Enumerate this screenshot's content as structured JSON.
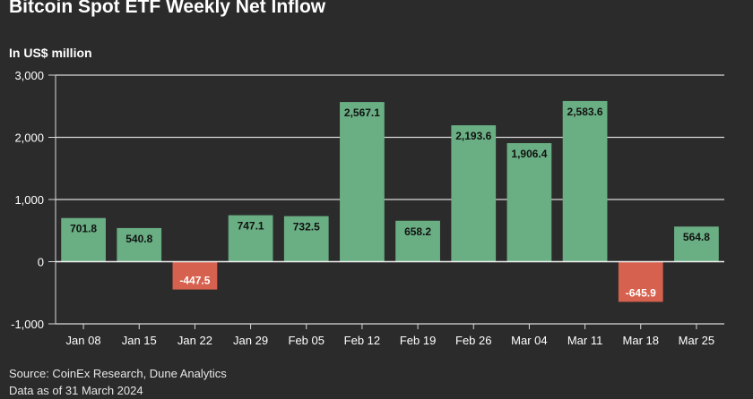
{
  "title": "Bitcoin Spot ETF Weekly Net Inflow",
  "subtitle": "In US$ million",
  "source": "Source: CoinEx Research, Dune Analytics",
  "data_as_of": "Data as of 31 March 2024",
  "colors": {
    "background": "#2b2b2b",
    "positive": "#6aaf84",
    "negative": "#d7614f",
    "grid": "#d9d9d9",
    "text": "#ffffff"
  },
  "chart_data": {
    "type": "bar",
    "categories": [
      "Jan 08",
      "Jan 15",
      "Jan 22",
      "Jan 29",
      "Feb 05",
      "Feb 12",
      "Feb 19",
      "Feb 26",
      "Mar 04",
      "Mar 11",
      "Mar 18",
      "Mar 25"
    ],
    "values": [
      701.8,
      540.8,
      -447.5,
      747.1,
      732.5,
      2567.1,
      658.2,
      2193.6,
      1906.4,
      2583.6,
      -645.9,
      564.8
    ],
    "value_labels": [
      "701.8",
      "540.8",
      "-447.5",
      "747.1",
      "732.5",
      "2,567.1",
      "658.2",
      "2,193.6",
      "1,906.4",
      "2,583.6",
      "-645.9",
      "564.8"
    ],
    "ylim": [
      -1000,
      3000
    ],
    "yticks": [
      -1000,
      0,
      1000,
      2000,
      3000
    ],
    "ytick_labels": [
      "-1,000",
      "0",
      "1,000",
      "2,000",
      "3,000"
    ],
    "grid": true,
    "legend": false
  }
}
